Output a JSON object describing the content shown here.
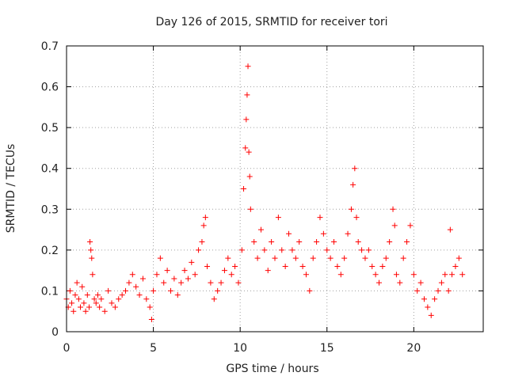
{
  "chart_data": {
    "type": "scatter",
    "title": "Day 126 of 2015, SRMTID for receiver tori",
    "xlabel": "GPS time / hours",
    "ylabel": "SRMTID / TECUs",
    "xlim": [
      0,
      24
    ],
    "ylim": [
      0,
      0.7
    ],
    "x_ticks": [
      0,
      5,
      10,
      15,
      20
    ],
    "x_tick_labels": [
      "0",
      "5",
      "10",
      "15",
      "20"
    ],
    "y_ticks": [
      0,
      0.1,
      0.2,
      0.3,
      0.4,
      0.5,
      0.6,
      0.7
    ],
    "y_tick_labels": [
      "0",
      "0.1",
      "0.2",
      "0.3",
      "0.4",
      "0.5",
      "0.6",
      "0.7"
    ],
    "grid": true,
    "marker": "+",
    "color": "#ff0000",
    "series": [
      {
        "name": "SRMTID",
        "points": [
          [
            0.0,
            0.08
          ],
          [
            0.1,
            0.06
          ],
          [
            0.2,
            0.1
          ],
          [
            0.3,
            0.07
          ],
          [
            0.4,
            0.05
          ],
          [
            0.5,
            0.09
          ],
          [
            0.6,
            0.12
          ],
          [
            0.7,
            0.08
          ],
          [
            0.8,
            0.06
          ],
          [
            0.9,
            0.11
          ],
          [
            1.0,
            0.07
          ],
          [
            1.1,
            0.05
          ],
          [
            1.2,
            0.09
          ],
          [
            1.3,
            0.06
          ],
          [
            1.35,
            0.22
          ],
          [
            1.4,
            0.2
          ],
          [
            1.45,
            0.18
          ],
          [
            1.5,
            0.14
          ],
          [
            1.6,
            0.08
          ],
          [
            1.7,
            0.07
          ],
          [
            1.8,
            0.09
          ],
          [
            1.9,
            0.06
          ],
          [
            2.0,
            0.08
          ],
          [
            2.2,
            0.05
          ],
          [
            2.4,
            0.1
          ],
          [
            2.6,
            0.07
          ],
          [
            2.8,
            0.06
          ],
          [
            3.0,
            0.08
          ],
          [
            3.2,
            0.09
          ],
          [
            3.4,
            0.1
          ],
          [
            3.6,
            0.12
          ],
          [
            3.8,
            0.14
          ],
          [
            4.0,
            0.11
          ],
          [
            4.2,
            0.09
          ],
          [
            4.4,
            0.13
          ],
          [
            4.6,
            0.08
          ],
          [
            4.8,
            0.06
          ],
          [
            4.9,
            0.03
          ],
          [
            5.0,
            0.1
          ],
          [
            5.2,
            0.14
          ],
          [
            5.4,
            0.18
          ],
          [
            5.6,
            0.12
          ],
          [
            5.8,
            0.15
          ],
          [
            6.0,
            0.1
          ],
          [
            6.2,
            0.13
          ],
          [
            6.4,
            0.09
          ],
          [
            6.6,
            0.12
          ],
          [
            6.8,
            0.15
          ],
          [
            7.0,
            0.13
          ],
          [
            7.2,
            0.17
          ],
          [
            7.4,
            0.14
          ],
          [
            7.6,
            0.2
          ],
          [
            7.8,
            0.22
          ],
          [
            7.9,
            0.26
          ],
          [
            8.0,
            0.28
          ],
          [
            8.1,
            0.16
          ],
          [
            8.3,
            0.12
          ],
          [
            8.5,
            0.08
          ],
          [
            8.7,
            0.1
          ],
          [
            8.9,
            0.12
          ],
          [
            9.1,
            0.15
          ],
          [
            9.3,
            0.18
          ],
          [
            9.5,
            0.14
          ],
          [
            9.7,
            0.16
          ],
          [
            9.9,
            0.12
          ],
          [
            10.1,
            0.2
          ],
          [
            10.2,
            0.35
          ],
          [
            10.3,
            0.45
          ],
          [
            10.35,
            0.52
          ],
          [
            10.4,
            0.58
          ],
          [
            10.45,
            0.65
          ],
          [
            10.5,
            0.44
          ],
          [
            10.55,
            0.38
          ],
          [
            10.6,
            0.3
          ],
          [
            10.8,
            0.22
          ],
          [
            11.0,
            0.18
          ],
          [
            11.2,
            0.25
          ],
          [
            11.4,
            0.2
          ],
          [
            11.6,
            0.15
          ],
          [
            11.8,
            0.22
          ],
          [
            12.0,
            0.18
          ],
          [
            12.2,
            0.28
          ],
          [
            12.4,
            0.2
          ],
          [
            12.6,
            0.16
          ],
          [
            12.8,
            0.24
          ],
          [
            13.0,
            0.2
          ],
          [
            13.2,
            0.18
          ],
          [
            13.4,
            0.22
          ],
          [
            13.6,
            0.16
          ],
          [
            13.8,
            0.14
          ],
          [
            14.0,
            0.1
          ],
          [
            14.2,
            0.18
          ],
          [
            14.4,
            0.22
          ],
          [
            14.6,
            0.28
          ],
          [
            14.8,
            0.24
          ],
          [
            15.0,
            0.2
          ],
          [
            15.2,
            0.18
          ],
          [
            15.4,
            0.22
          ],
          [
            15.6,
            0.16
          ],
          [
            15.8,
            0.14
          ],
          [
            16.0,
            0.18
          ],
          [
            16.2,
            0.24
          ],
          [
            16.4,
            0.3
          ],
          [
            16.5,
            0.36
          ],
          [
            16.6,
            0.4
          ],
          [
            16.7,
            0.28
          ],
          [
            16.8,
            0.22
          ],
          [
            17.0,
            0.2
          ],
          [
            17.2,
            0.18
          ],
          [
            17.4,
            0.2
          ],
          [
            17.6,
            0.16
          ],
          [
            17.8,
            0.14
          ],
          [
            18.0,
            0.12
          ],
          [
            18.2,
            0.16
          ],
          [
            18.4,
            0.18
          ],
          [
            18.6,
            0.22
          ],
          [
            18.8,
            0.3
          ],
          [
            18.9,
            0.26
          ],
          [
            19.0,
            0.14
          ],
          [
            19.2,
            0.12
          ],
          [
            19.4,
            0.18
          ],
          [
            19.6,
            0.22
          ],
          [
            19.8,
            0.26
          ],
          [
            20.0,
            0.14
          ],
          [
            20.2,
            0.1
          ],
          [
            20.4,
            0.12
          ],
          [
            20.6,
            0.08
          ],
          [
            20.8,
            0.06
          ],
          [
            21.0,
            0.04
          ],
          [
            21.2,
            0.08
          ],
          [
            21.4,
            0.1
          ],
          [
            21.6,
            0.12
          ],
          [
            21.8,
            0.14
          ],
          [
            22.0,
            0.1
          ],
          [
            22.1,
            0.25
          ],
          [
            22.2,
            0.14
          ],
          [
            22.4,
            0.16
          ],
          [
            22.6,
            0.18
          ],
          [
            22.8,
            0.14
          ]
        ]
      }
    ]
  }
}
